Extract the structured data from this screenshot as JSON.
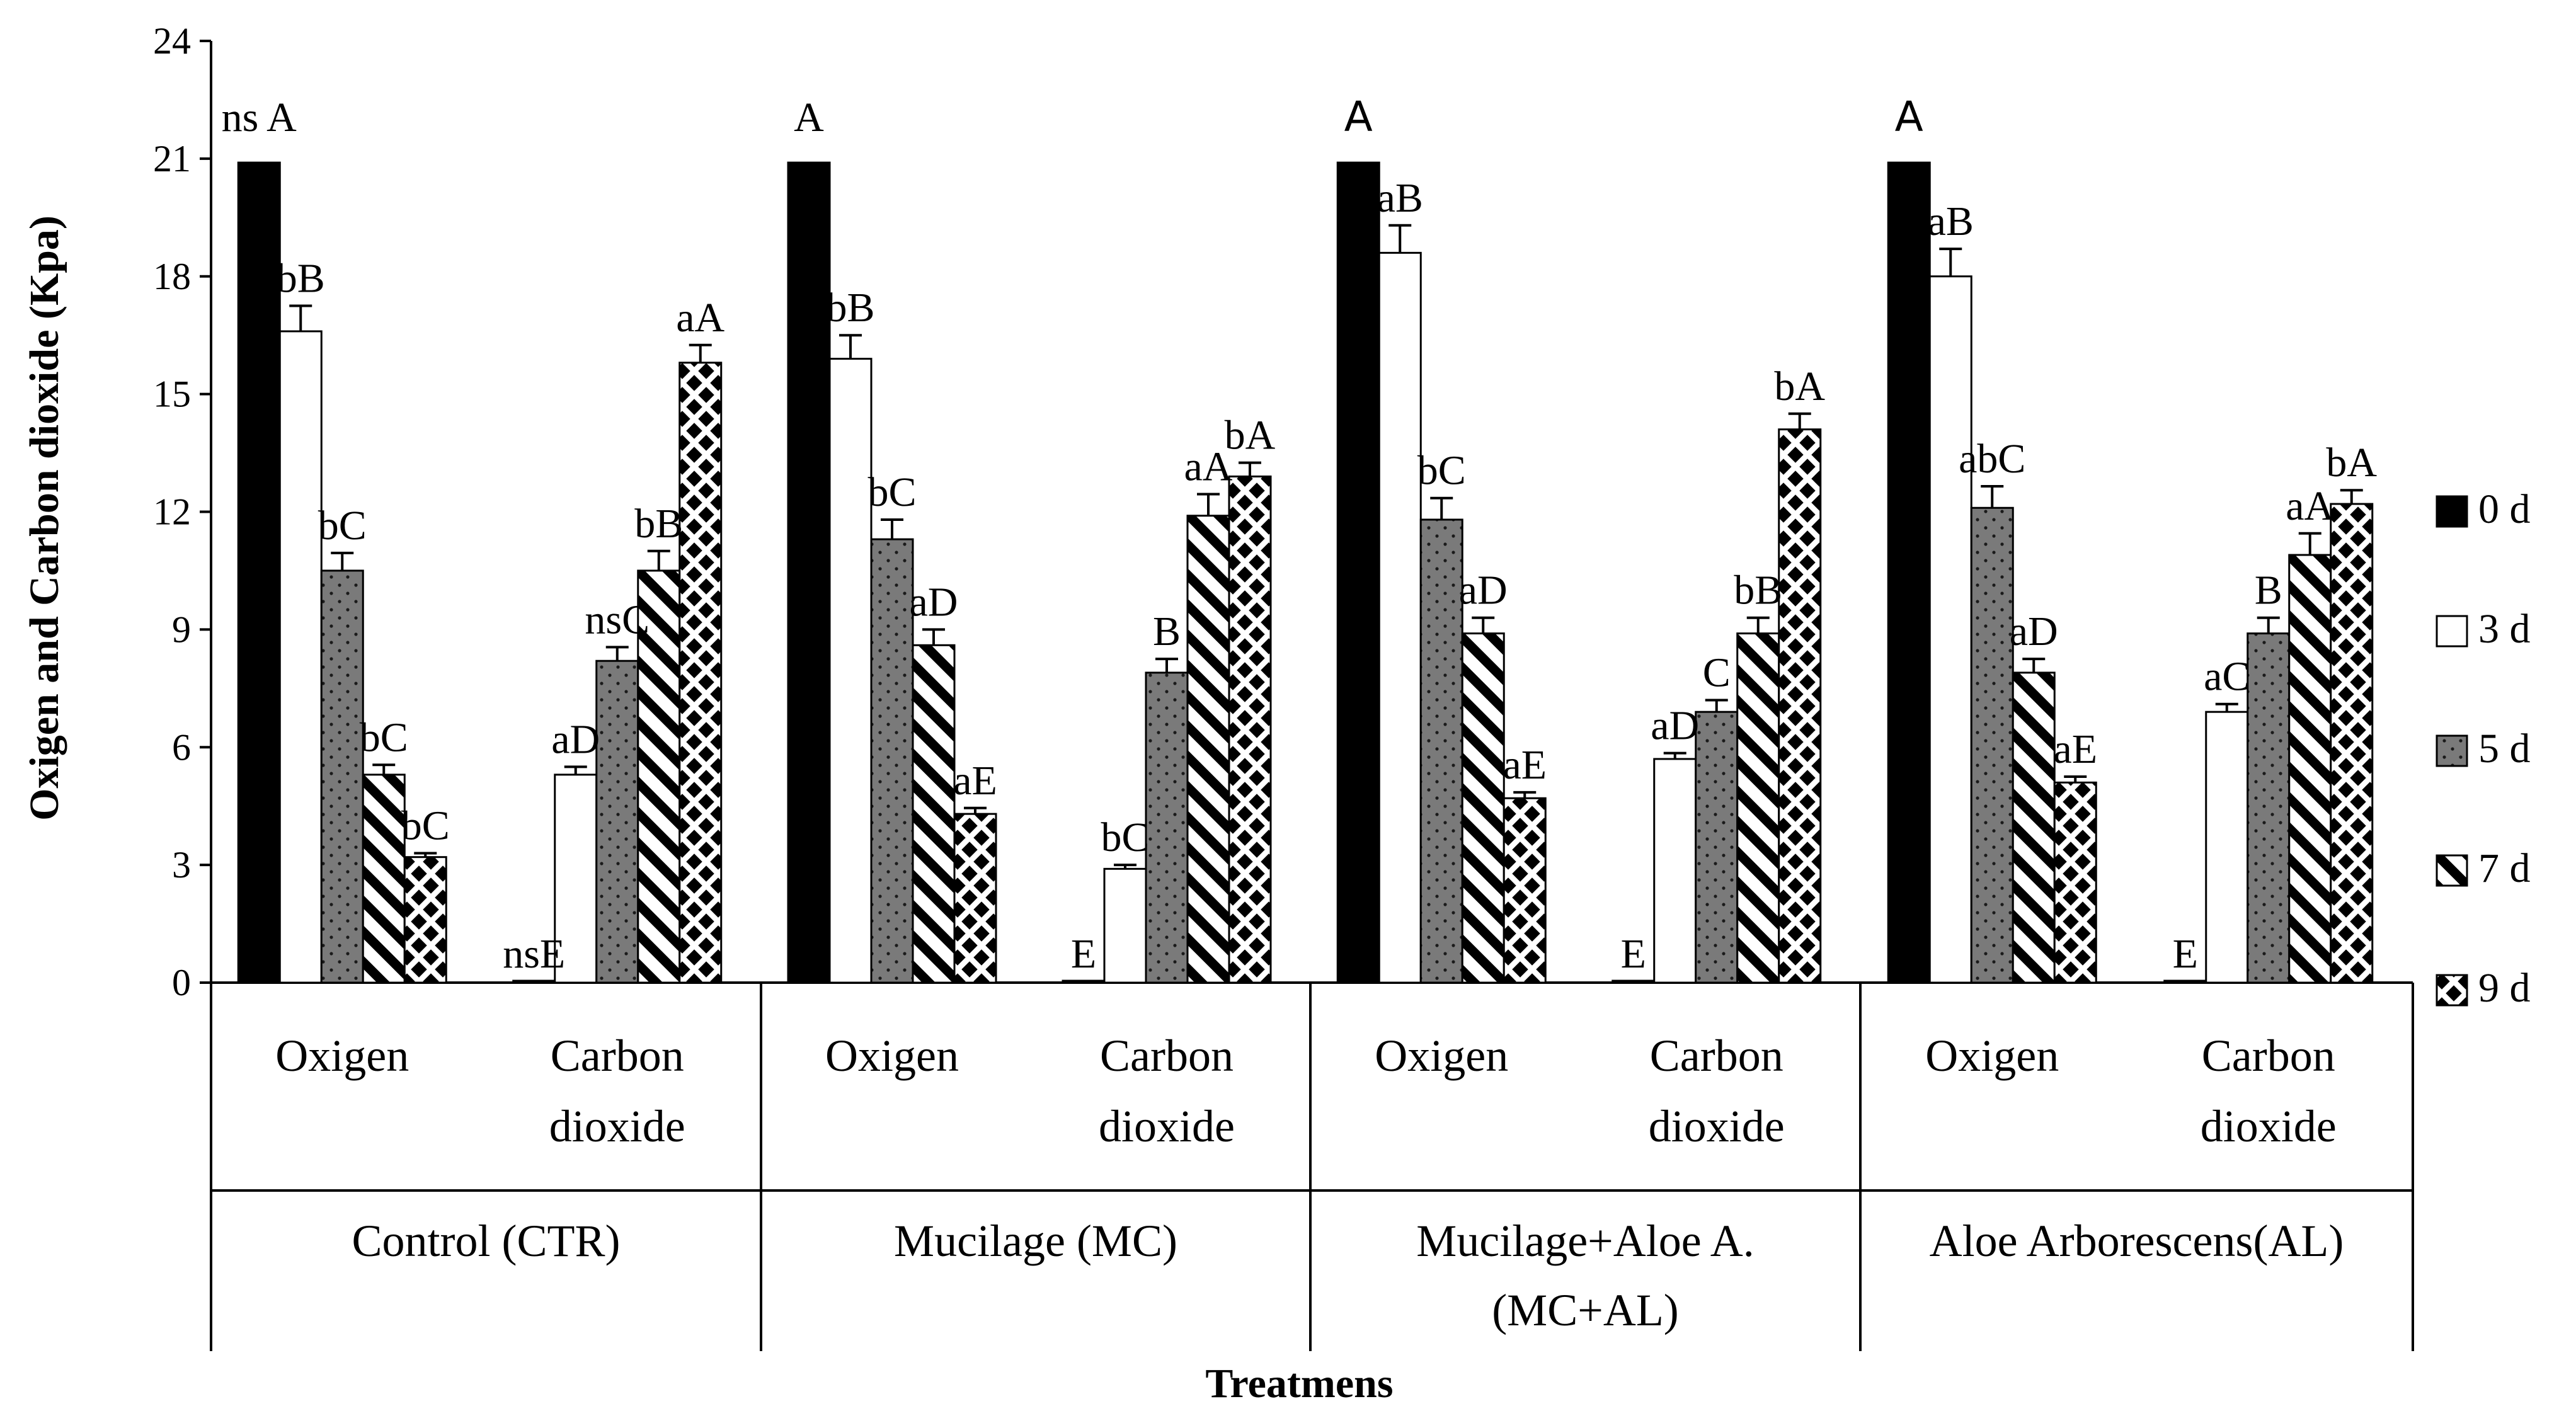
{
  "chart_data": {
    "type": "bar",
    "ylabel": "Oxigen and Carbon dioxide (Kpa)",
    "xlabel": "Treatmens",
    "ylim": [
      0,
      24
    ],
    "yticks": [
      0,
      3,
      6,
      9,
      12,
      15,
      18,
      21,
      24
    ],
    "legend": [
      "0 d",
      "3 d",
      "5 d",
      "7 d",
      "9 d"
    ],
    "legend_position": "right",
    "colors": {
      "black": "#000000",
      "white": "#ffffff",
      "gray": "#7a7a7a",
      "dot": "#202020"
    },
    "groups": [
      {
        "name": "Control (CTR)",
        "subgroups": [
          {
            "name": [
              "Oxigen"
            ],
            "values": [
              20.9,
              16.6,
              10.5,
              5.3,
              3.2
            ],
            "errors": [
              0,
              0.65,
              0.45,
              0.25,
              0.1
            ],
            "labels": [
              "ns A",
              "bB",
              "bC",
              "bC",
              "bC"
            ]
          },
          {
            "name": [
              "Carbon",
              "dioxide"
            ],
            "values": [
              0.03,
              5.3,
              8.2,
              10.5,
              15.8
            ],
            "errors": [
              0,
              0.2,
              0.35,
              0.5,
              0.45
            ],
            "labels": [
              "nsE",
              "aD",
              "nsC",
              "bB",
              "aA"
            ]
          }
        ]
      },
      {
        "name": "Mucilage (MC)",
        "subgroups": [
          {
            "name": [
              "Oxigen"
            ],
            "values": [
              20.9,
              15.9,
              11.3,
              8.6,
              4.3
            ],
            "errors": [
              0,
              0.6,
              0.5,
              0.4,
              0.15
            ],
            "labels": [
              "A",
              "bB",
              "bC",
              "aD",
              "aE"
            ]
          },
          {
            "name": [
              "Carbon",
              "dioxide"
            ],
            "values": [
              0.03,
              2.9,
              7.9,
              11.9,
              12.9
            ],
            "errors": [
              0,
              0.1,
              0.35,
              0.55,
              0.35
            ],
            "labels": [
              "E",
              "bC",
              "B",
              "aA",
              "bA"
            ]
          }
        ]
      },
      {
        "name": "Mucilage+Aloe A.",
        "name2": "(MC+AL)",
        "subgroups": [
          {
            "name": [
              "Oxigen"
            ],
            "values": [
              20.9,
              18.6,
              11.8,
              8.9,
              4.7
            ],
            "errors": [
              0,
              0.7,
              0.55,
              0.4,
              0.15
            ],
            "labels": [
              "A",
              "aB",
              "bC",
              "aD",
              "aE"
            ]
          },
          {
            "name": [
              "Carbon",
              "dioxide"
            ],
            "values": [
              0.03,
              5.7,
              6.9,
              8.9,
              14.1
            ],
            "errors": [
              0,
              0.15,
              0.3,
              0.4,
              0.4
            ],
            "labels": [
              "E",
              "aD",
              "C",
              "bB",
              "bA"
            ]
          }
        ]
      },
      {
        "name": "Aloe Arborescens(AL)",
        "subgroups": [
          {
            "name": [
              "Oxigen"
            ],
            "values": [
              20.9,
              18.0,
              12.1,
              7.9,
              5.1
            ],
            "errors": [
              0,
              0.7,
              0.55,
              0.35,
              0.15
            ],
            "labels": [
              "A",
              "aB",
              "abC",
              "aD",
              "aE"
            ]
          },
          {
            "name": [
              "Carbon",
              "dioxide"
            ],
            "values": [
              0.03,
              6.9,
              8.9,
              10.9,
              12.2
            ],
            "errors": [
              0,
              0.2,
              0.4,
              0.55,
              0.35
            ],
            "labels": [
              "E",
              "aC",
              "B",
              "aA",
              "bA"
            ]
          }
        ]
      }
    ]
  }
}
